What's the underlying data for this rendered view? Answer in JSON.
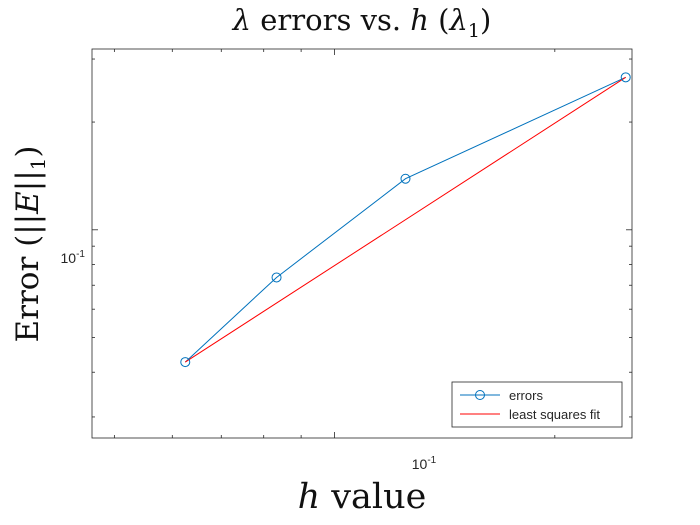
{
  "chart_data": {
    "type": "line",
    "title": {
      "prefix": "λ",
      "middle": " errors vs. ",
      "var": "h",
      "paren_open": " (",
      "lambda": "λ",
      "subscript": "1",
      "paren_close": ")"
    },
    "xlabel": {
      "var": "h",
      "text": " value"
    },
    "ylabel": {
      "prefix": "Error (",
      "bars_open": "||",
      "var": "E",
      "bars_close": "||",
      "subscript": "1",
      "suffix": ")"
    },
    "xscale": "log",
    "yscale": "log",
    "xlim": [
      0.0466,
      0.255
    ],
    "ylim": [
      0.0262,
      0.32
    ],
    "grid": false,
    "box": true,
    "xticks": [
      {
        "base": "10",
        "exp": "-1",
        "value": 0.1
      }
    ],
    "yticks": [
      {
        "base": "10",
        "exp": "-1",
        "value": 0.1
      }
    ],
    "series": [
      {
        "name": "errors",
        "color": "#0072BD",
        "marker": "circle",
        "x": [
          0.0625,
          0.0833,
          0.125,
          0.25
        ],
        "y": [
          0.0427,
          0.0736,
          0.1389,
          0.2667
        ]
      },
      {
        "name": "least squares fit",
        "color": "#FF0000",
        "marker": "none",
        "x": [
          0.0625,
          0.25
        ],
        "y": [
          0.0427,
          0.2667
        ]
      }
    ],
    "legend": {
      "position": "bottom-right",
      "entries": [
        "errors",
        "least squares fit"
      ]
    }
  }
}
